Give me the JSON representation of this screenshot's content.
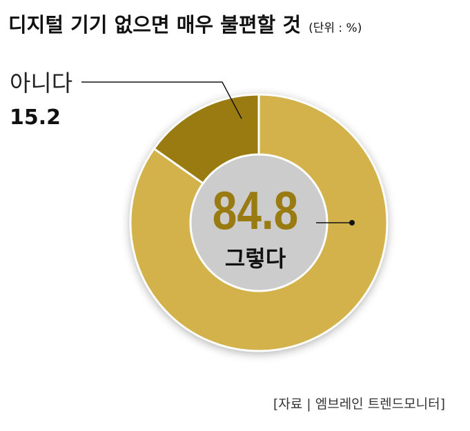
{
  "chart_data": {
    "type": "pie",
    "title": "디지털 기기 없으면 매우 불편할 것",
    "subtitle": "(단위 : %)",
    "categories": [
      "그렇다",
      "아니다"
    ],
    "values": [
      84.8,
      15.2
    ],
    "colors": [
      "#d3b24b",
      "#9a7b12"
    ],
    "source": "[자료 | 엠브레인 트렌드모니터]"
  }
}
